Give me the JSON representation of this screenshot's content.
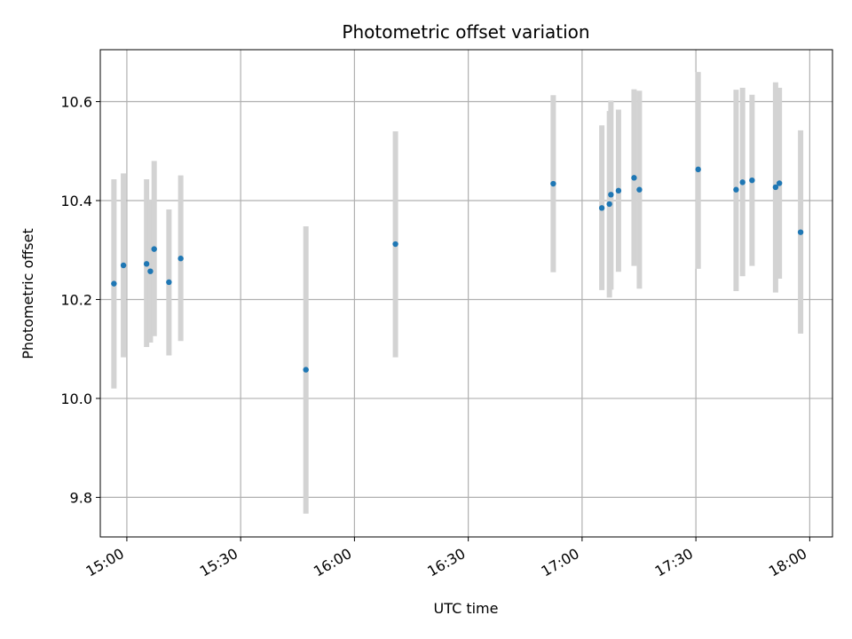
{
  "chart_data": {
    "type": "scatter",
    "title": "Photometric offset variation",
    "xlabel": "UTC time",
    "ylabel": "Photometric offset",
    "x_unit": "UTC time (HH:MM)",
    "xlim": [
      "14:53",
      "18:06"
    ],
    "ylim": [
      9.72,
      10.705
    ],
    "x_ticks": [
      "15:00",
      "15:30",
      "16:00",
      "16:30",
      "17:00",
      "17:30",
      "18:00"
    ],
    "y_ticks": [
      "9.8",
      "10.0",
      "10.2",
      "10.4",
      "10.6"
    ],
    "grid": true,
    "colors": {
      "marker": "#1f77b4",
      "errorbar": "#d3d3d3",
      "grid": "#b0b0b0"
    },
    "points": [
      {
        "x": "14:56:36",
        "y": 10.232,
        "err_low": 10.02,
        "err_high": 10.443
      },
      {
        "x": "14:59:06",
        "y": 10.269,
        "err_low": 10.083,
        "err_high": 10.455
      },
      {
        "x": "15:05:12",
        "y": 10.272,
        "err_low": 10.104,
        "err_high": 10.443
      },
      {
        "x": "15:06:12",
        "y": 10.257,
        "err_low": 10.113,
        "err_high": 10.402
      },
      {
        "x": "15:07:12",
        "y": 10.302,
        "err_low": 10.126,
        "err_high": 10.48
      },
      {
        "x": "15:11:06",
        "y": 10.235,
        "err_low": 10.087,
        "err_high": 10.382
      },
      {
        "x": "15:14:12",
        "y": 10.283,
        "err_low": 10.116,
        "err_high": 10.451
      },
      {
        "x": "15:47:12",
        "y": 10.058,
        "err_low": 9.767,
        "err_high": 10.348
      },
      {
        "x": "16:10:48",
        "y": 10.312,
        "err_low": 10.083,
        "err_high": 10.54
      },
      {
        "x": "16:52:24",
        "y": 10.434,
        "err_low": 10.255,
        "err_high": 10.613
      },
      {
        "x": "17:05:12",
        "y": 10.385,
        "err_low": 10.219,
        "err_high": 10.552
      },
      {
        "x": "17:07:12",
        "y": 10.393,
        "err_low": 10.204,
        "err_high": 10.581
      },
      {
        "x": "17:07:36",
        "y": 10.412,
        "err_low": 10.22,
        "err_high": 10.602
      },
      {
        "x": "17:09:36",
        "y": 10.42,
        "err_low": 10.256,
        "err_high": 10.584
      },
      {
        "x": "17:13:42",
        "y": 10.446,
        "err_low": 10.268,
        "err_high": 10.625
      },
      {
        "x": "17:15:06",
        "y": 10.422,
        "err_low": 10.222,
        "err_high": 10.622
      },
      {
        "x": "17:30:36",
        "y": 10.463,
        "err_low": 10.262,
        "err_high": 10.66
      },
      {
        "x": "17:40:36",
        "y": 10.422,
        "err_low": 10.217,
        "err_high": 10.624
      },
      {
        "x": "17:42:18",
        "y": 10.437,
        "err_low": 10.247,
        "err_high": 10.628
      },
      {
        "x": "17:44:48",
        "y": 10.441,
        "err_low": 10.268,
        "err_high": 10.614
      },
      {
        "x": "17:51:00",
        "y": 10.427,
        "err_low": 10.214,
        "err_high": 10.639
      },
      {
        "x": "17:52:00",
        "y": 10.435,
        "err_low": 10.242,
        "err_high": 10.628
      },
      {
        "x": "17:57:36",
        "y": 10.336,
        "err_low": 10.131,
        "err_high": 10.542
      }
    ]
  }
}
